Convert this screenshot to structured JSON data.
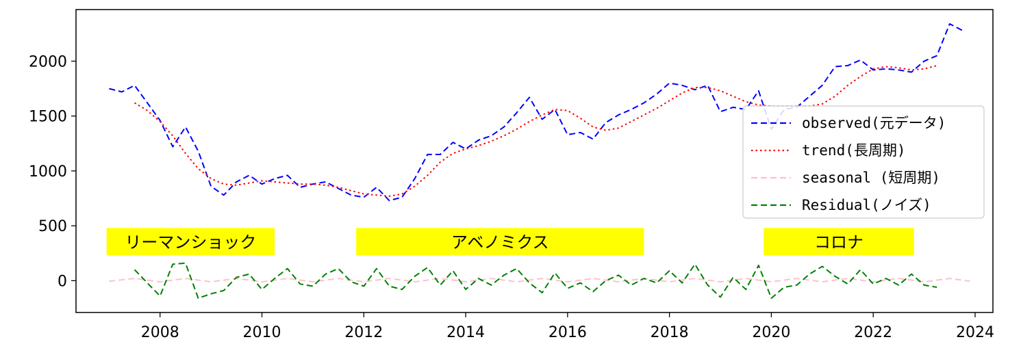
{
  "chart_data": {
    "type": "line",
    "title": "",
    "xlabel": "",
    "ylabel": "",
    "xlim": [
      2006.35,
      2024.35
    ],
    "ylim": [
      -290,
      2470
    ],
    "x_ticks": [
      {
        "value": 2008,
        "label": "2008"
      },
      {
        "value": 2010,
        "label": "2010"
      },
      {
        "value": 2012,
        "label": "2012"
      },
      {
        "value": 2014,
        "label": "2014"
      },
      {
        "value": 2016,
        "label": "2016"
      },
      {
        "value": 2018,
        "label": "2018"
      },
      {
        "value": 2020,
        "label": "2020"
      },
      {
        "value": 2022,
        "label": "2022"
      },
      {
        "value": 2024,
        "label": "2024"
      }
    ],
    "y_ticks": [
      {
        "value": 0,
        "label": "0"
      },
      {
        "value": 500,
        "label": "500"
      },
      {
        "value": 1000,
        "label": "1000"
      },
      {
        "value": 1500,
        "label": "1500"
      },
      {
        "value": 2000,
        "label": "2000"
      }
    ],
    "grid": false,
    "legend_position": "center-right",
    "series": [
      {
        "name": "observed(元データ)",
        "color": "#0000ff",
        "style": "dashed",
        "x": [
          2007.0,
          2007.25,
          2007.5,
          2007.75,
          2008.0,
          2008.25,
          2008.5,
          2008.75,
          2009.0,
          2009.25,
          2009.5,
          2009.75,
          2010.0,
          2010.25,
          2010.5,
          2010.75,
          2011.0,
          2011.25,
          2011.5,
          2011.75,
          2012.0,
          2012.25,
          2012.5,
          2012.75,
          2013.0,
          2013.25,
          2013.5,
          2013.75,
          2014.0,
          2014.25,
          2014.5,
          2014.75,
          2015.0,
          2015.25,
          2015.5,
          2015.75,
          2016.0,
          2016.25,
          2016.5,
          2016.75,
          2017.0,
          2017.25,
          2017.5,
          2017.75,
          2018.0,
          2018.25,
          2018.5,
          2018.75,
          2019.0,
          2019.25,
          2019.5,
          2019.75,
          2020.0,
          2020.25,
          2020.5,
          2020.75,
          2021.0,
          2021.25,
          2021.5,
          2021.75,
          2022.0,
          2022.25,
          2022.5,
          2022.75,
          2023.0,
          2023.25,
          2023.5,
          2023.75
        ],
        "y": [
          1750,
          1720,
          1780,
          1620,
          1460,
          1220,
          1400,
          1180,
          860,
          780,
          900,
          960,
          880,
          930,
          960,
          850,
          880,
          900,
          840,
          780,
          760,
          850,
          730,
          760,
          930,
          1150,
          1150,
          1260,
          1200,
          1280,
          1320,
          1400,
          1530,
          1670,
          1470,
          1560,
          1330,
          1350,
          1290,
          1440,
          1510,
          1560,
          1620,
          1700,
          1800,
          1780,
          1740,
          1780,
          1540,
          1580,
          1560,
          1730,
          1380,
          1560,
          1580,
          1680,
          1780,
          1950,
          1960,
          2010,
          1920,
          1930,
          1920,
          1900,
          2000,
          2050,
          2340,
          2280
        ]
      },
      {
        "name": "trend(長周期)",
        "color": "#ff0000",
        "style": "dotted",
        "x": [
          2007.5,
          2007.75,
          2008.0,
          2008.25,
          2008.5,
          2008.75,
          2009.0,
          2009.25,
          2009.5,
          2009.75,
          2010.0,
          2010.25,
          2010.5,
          2010.75,
          2011.0,
          2011.25,
          2011.5,
          2011.75,
          2012.0,
          2012.25,
          2012.5,
          2012.75,
          2013.0,
          2013.25,
          2013.5,
          2013.75,
          2014.0,
          2014.25,
          2014.5,
          2014.75,
          2015.0,
          2015.25,
          2015.5,
          2015.75,
          2016.0,
          2016.25,
          2016.5,
          2016.75,
          2017.0,
          2017.25,
          2017.5,
          2017.75,
          2018.0,
          2018.25,
          2018.5,
          2018.75,
          2019.0,
          2019.25,
          2019.5,
          2019.75,
          2020.0,
          2020.25,
          2020.5,
          2020.75,
          2021.0,
          2021.25,
          2021.5,
          2021.75,
          2022.0,
          2022.25,
          2022.5,
          2022.75,
          2023.0,
          2023.25
        ],
        "y": [
          1620,
          1550,
          1450,
          1320,
          1160,
          1020,
          930,
          880,
          870,
          890,
          910,
          900,
          890,
          880,
          880,
          870,
          850,
          820,
          790,
          780,
          770,
          790,
          860,
          960,
          1080,
          1160,
          1200,
          1230,
          1270,
          1320,
          1380,
          1450,
          1510,
          1560,
          1550,
          1480,
          1400,
          1370,
          1390,
          1450,
          1510,
          1570,
          1640,
          1710,
          1760,
          1760,
          1730,
          1680,
          1630,
          1600,
          1590,
          1590,
          1590,
          1590,
          1610,
          1680,
          1780,
          1860,
          1930,
          1950,
          1940,
          1920,
          1930,
          1960
        ]
      },
      {
        "name": "seasonal (短周期)",
        "color": "#ffc0cb",
        "style": "dashed",
        "x": [
          2007.0,
          2007.5,
          2008.0,
          2008.5,
          2009.0,
          2009.5,
          2010.0,
          2010.5,
          2011.0,
          2011.5,
          2012.0,
          2012.5,
          2013.0,
          2013.5,
          2014.0,
          2014.5,
          2015.0,
          2015.5,
          2016.0,
          2016.5,
          2017.0,
          2017.5,
          2018.0,
          2018.5,
          2019.0,
          2019.5,
          2020.0,
          2020.5,
          2021.0,
          2021.5,
          2022.0,
          2022.5,
          2023.0,
          2023.5,
          2023.9
        ],
        "y": [
          -5,
          20,
          -10,
          20,
          -10,
          20,
          -10,
          20,
          -10,
          20,
          -10,
          20,
          -10,
          20,
          -10,
          20,
          -10,
          20,
          -10,
          20,
          -10,
          20,
          -10,
          20,
          -10,
          20,
          -10,
          20,
          -10,
          20,
          -10,
          20,
          -10,
          20,
          -5
        ]
      },
      {
        "name": "Residual(ノイズ)",
        "color": "#008000",
        "style": "dashed",
        "x": [
          2007.5,
          2007.75,
          2008.0,
          2008.25,
          2008.5,
          2008.75,
          2009.0,
          2009.25,
          2009.5,
          2009.75,
          2010.0,
          2010.25,
          2010.5,
          2010.75,
          2011.0,
          2011.25,
          2011.5,
          2011.75,
          2012.0,
          2012.25,
          2012.5,
          2012.75,
          2013.0,
          2013.25,
          2013.5,
          2013.75,
          2014.0,
          2014.25,
          2014.5,
          2014.75,
          2015.0,
          2015.25,
          2015.5,
          2015.75,
          2016.0,
          2016.25,
          2016.5,
          2016.75,
          2017.0,
          2017.25,
          2017.5,
          2017.75,
          2018.0,
          2018.25,
          2018.5,
          2018.75,
          2019.0,
          2019.25,
          2019.5,
          2019.75,
          2020.0,
          2020.25,
          2020.5,
          2020.75,
          2021.0,
          2021.25,
          2021.5,
          2021.75,
          2022.0,
          2022.25,
          2022.5,
          2022.75,
          2023.0,
          2023.25
        ],
        "y": [
          100,
          -20,
          -140,
          150,
          160,
          -160,
          -120,
          -90,
          30,
          60,
          -80,
          20,
          110,
          -30,
          -50,
          60,
          110,
          -10,
          -50,
          110,
          -50,
          -80,
          40,
          120,
          -40,
          90,
          -80,
          20,
          -40,
          50,
          110,
          -20,
          -110,
          70,
          -70,
          -20,
          -100,
          0,
          50,
          -40,
          20,
          -20,
          90,
          -20,
          150,
          -40,
          -150,
          30,
          -80,
          140,
          -160,
          -60,
          -40,
          60,
          130,
          40,
          -30,
          100,
          -30,
          20,
          -40,
          60,
          -40,
          -60
        ]
      }
    ],
    "bands": [
      {
        "label": "リーマンショック",
        "color": "#ffff00",
        "x_start": 2006.95,
        "x_end": 2010.25,
        "y_low": 230,
        "y_high": 480
      },
      {
        "label": "アベノミクス",
        "color": "#ffff00",
        "x_start": 2011.85,
        "x_end": 2017.5,
        "y_low": 230,
        "y_high": 480
      },
      {
        "label": "コロナ",
        "color": "#ffff00",
        "x_start": 2019.85,
        "x_end": 2022.8,
        "y_low": 230,
        "y_high": 480
      }
    ]
  }
}
